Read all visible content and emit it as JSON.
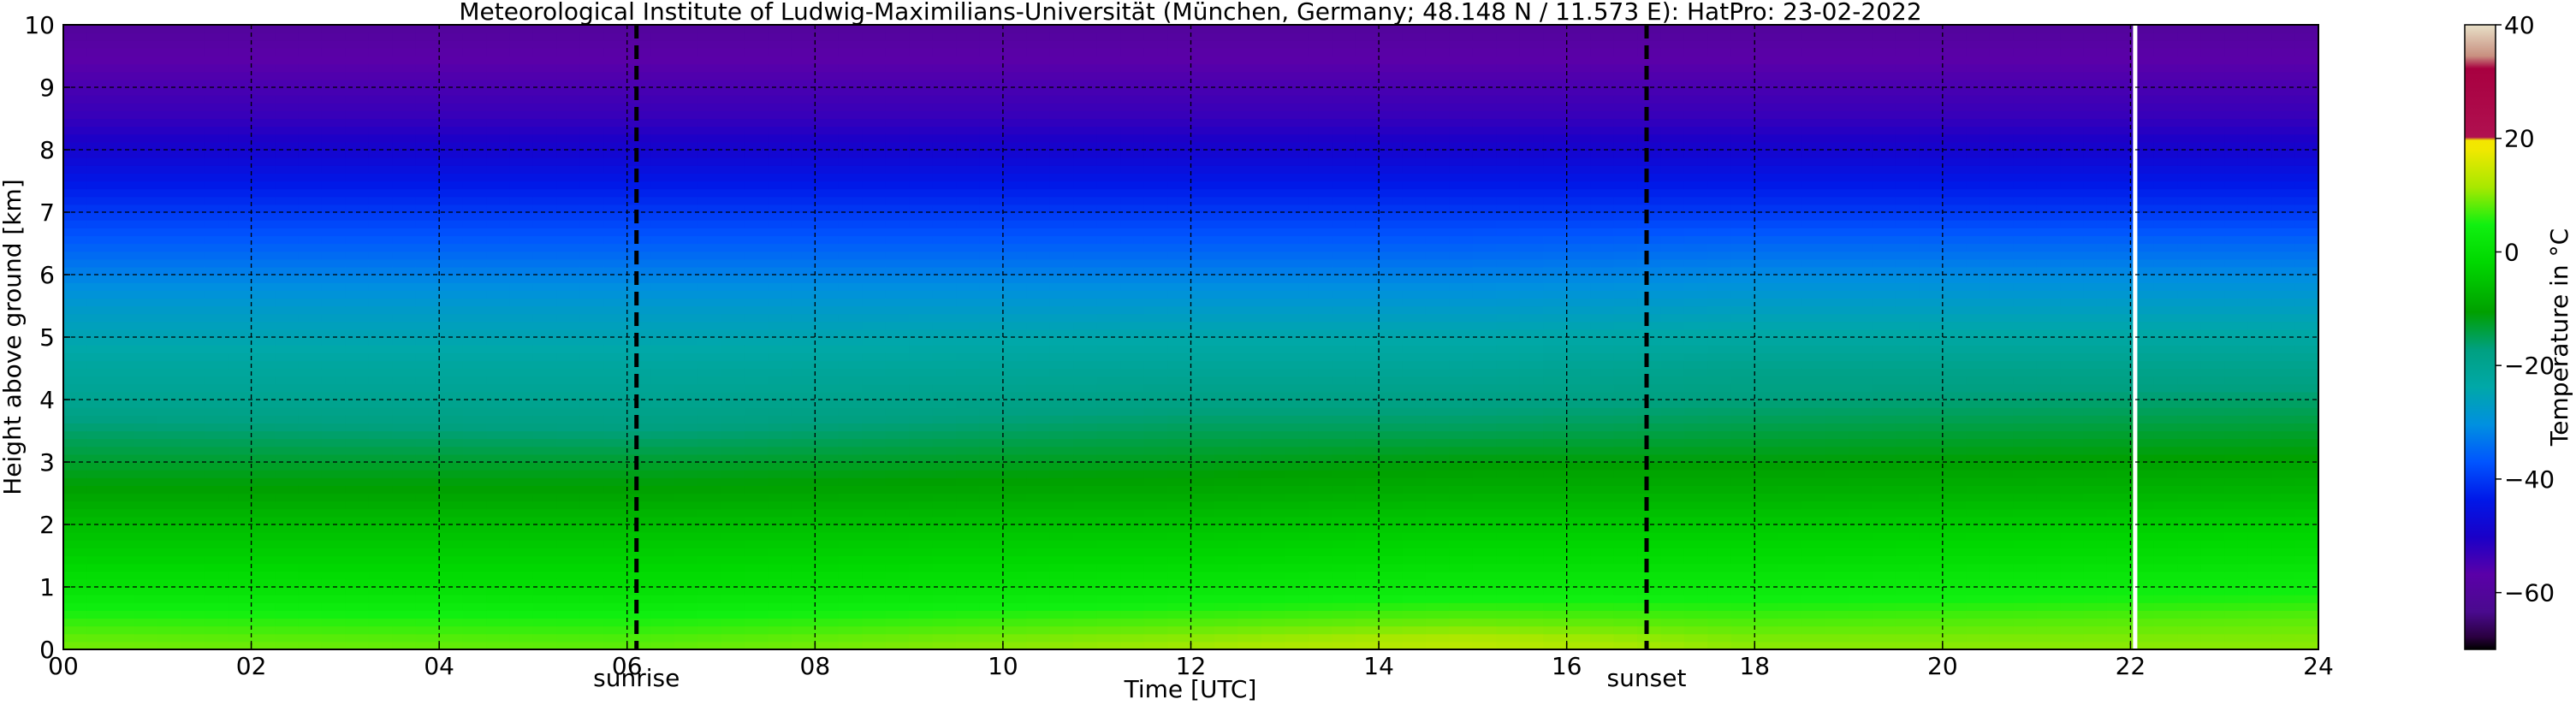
{
  "chart_data": {
    "type": "heatmap",
    "title": "Meteorological Institute of Ludwig-Maximilians-Universität (München, Germany; 48.148 N / 11.573 E):     HatPro: 23-02-2022",
    "xlabel": "Time [UTC]",
    "ylabel": "Height above ground [km]",
    "xlim": [
      0,
      24
    ],
    "ylim": [
      0,
      10
    ],
    "x_ticks": [
      "00",
      "02",
      "04",
      "06",
      "08",
      "10",
      "12",
      "14",
      "16",
      "18",
      "20",
      "22",
      "24"
    ],
    "y_ticks": [
      "0",
      "1",
      "2",
      "3",
      "4",
      "5",
      "6",
      "7",
      "8",
      "9",
      "10"
    ],
    "grid": true,
    "markers": [
      {
        "label": "sunrise",
        "time": 6.1
      },
      {
        "label": "sunset",
        "time": 16.85
      }
    ],
    "data_gap_time": 22.05,
    "colorbar": {
      "label": "Temperature in $^\\circ$C",
      "range": [
        -70,
        40
      ],
      "ticks": [
        "40",
        "20",
        "0",
        "−20",
        "−40",
        "−60"
      ]
    },
    "height_km": [
      0.1,
      0.5,
      1.0,
      1.5,
      2.0,
      2.5,
      3.0,
      3.5,
      4.0,
      4.5,
      5.0,
      5.5,
      6.0,
      6.5,
      7.0,
      7.5,
      8.0,
      8.5,
      9.0,
      9.5,
      10.0
    ],
    "profiles": [
      {
        "time": 0,
        "temperature_c": [
          9,
          6,
          1,
          -3,
          -6,
          -10,
          -13,
          -16,
          -20,
          -22,
          -25,
          -28,
          -32,
          -36,
          -40,
          -44,
          -49,
          -53,
          -55,
          -57,
          -60
        ]
      },
      {
        "time": 6,
        "temperature_c": [
          8,
          5,
          0,
          -3,
          -6,
          -10,
          -13,
          -17,
          -20,
          -22,
          -25,
          -28,
          -32,
          -36,
          -40,
          -44,
          -49,
          -53,
          -55,
          -57,
          -60
        ]
      },
      {
        "time": 12,
        "temperature_c": [
          11,
          7,
          2,
          -2,
          -5,
          -9,
          -12,
          -15,
          -18,
          -21,
          -24,
          -28,
          -32,
          -36,
          -40,
          -44,
          -49,
          -53,
          -55,
          -57,
          -60
        ]
      },
      {
        "time": 15,
        "temperature_c": [
          13,
          8,
          3,
          -1,
          -4,
          -8,
          -11,
          -15,
          -18,
          -21,
          -24,
          -28,
          -32,
          -36,
          -40,
          -44,
          -49,
          -53,
          -55,
          -57,
          -60
        ]
      },
      {
        "time": 18,
        "temperature_c": [
          10,
          7,
          3,
          -1,
          -4,
          -8,
          -11,
          -14,
          -17,
          -19,
          -23,
          -27,
          -31,
          -35,
          -40,
          -44,
          -49,
          -53,
          -55,
          -57,
          -60
        ]
      },
      {
        "time": 24,
        "temperature_c": [
          10,
          8,
          4,
          0,
          -3,
          -7,
          -10,
          -13,
          -16,
          -19,
          -23,
          -27,
          -31,
          -35,
          -40,
          -44,
          -49,
          -53,
          -55,
          -57,
          -60
        ]
      }
    ]
  }
}
